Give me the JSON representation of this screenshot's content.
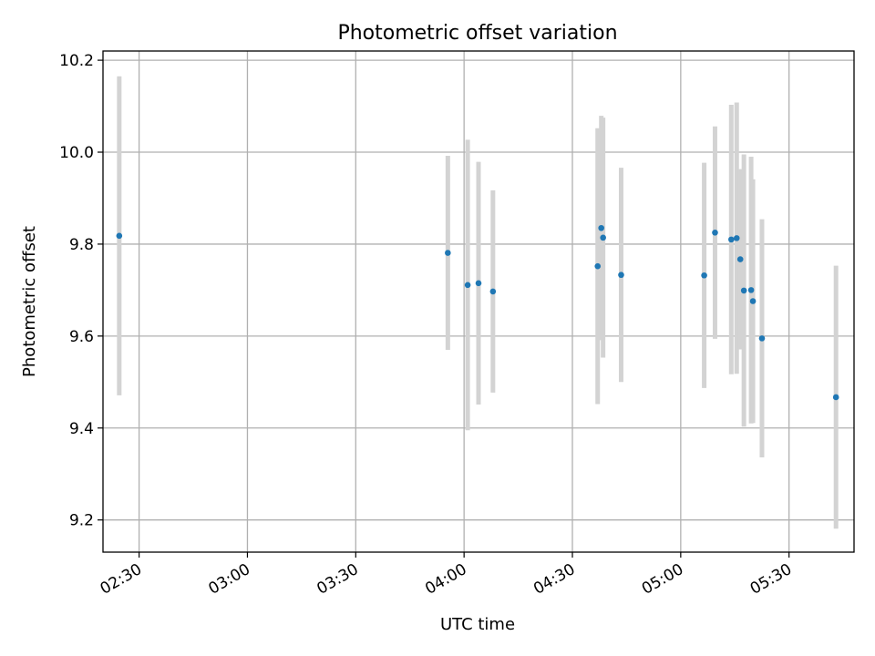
{
  "chart_data": {
    "type": "scatter",
    "title": "Photometric offset variation",
    "xlabel": "UTC time",
    "ylabel": "Photometric offset",
    "x_unit": "UTC time (HH:MM)",
    "xlim": [
      "02:20",
      "05:48"
    ],
    "ylim": [
      9.13,
      10.22
    ],
    "x_ticks": [
      "02:30",
      "03:00",
      "03:30",
      "04:00",
      "04:30",
      "05:00",
      "05:30"
    ],
    "y_ticks": [
      "9.2",
      "9.4",
      "9.6",
      "9.8",
      "10.0",
      "10.2"
    ],
    "grid": true,
    "legend": "none",
    "colors": {
      "point": "#1f77b4",
      "errorbar": "#d3d3d3",
      "grid": "#b0b0b0"
    },
    "points": [
      {
        "time": "02:24:30",
        "y": 9.818,
        "err": 0.347
      },
      {
        "time": "03:55:30",
        "y": 9.781,
        "err": 0.211
      },
      {
        "time": "04:01:00",
        "y": 9.711,
        "err": 0.316
      },
      {
        "time": "04:04:00",
        "y": 9.715,
        "err": 0.264
      },
      {
        "time": "04:08:00",
        "y": 9.697,
        "err": 0.22
      },
      {
        "time": "04:37:00",
        "y": 9.752,
        "err": 0.3
      },
      {
        "time": "04:38:00",
        "y": 9.835,
        "err": 0.244
      },
      {
        "time": "04:38:30",
        "y": 9.814,
        "err": 0.261
      },
      {
        "time": "04:43:30",
        "y": 9.733,
        "err": 0.233
      },
      {
        "time": "05:06:30",
        "y": 9.732,
        "err": 0.245
      },
      {
        "time": "05:09:30",
        "y": 9.825,
        "err": 0.231
      },
      {
        "time": "05:14:00",
        "y": 9.81,
        "err": 0.293
      },
      {
        "time": "05:15:30",
        "y": 9.813,
        "err": 0.295
      },
      {
        "time": "05:16:30",
        "y": 9.767,
        "err": 0.196
      },
      {
        "time": "05:17:30",
        "y": 9.699,
        "err": 0.296
      },
      {
        "time": "05:19:30",
        "y": 9.7,
        "err": 0.29
      },
      {
        "time": "05:20:00",
        "y": 9.676,
        "err": 0.265
      },
      {
        "time": "05:22:30",
        "y": 9.595,
        "err": 0.259
      },
      {
        "time": "05:43:00",
        "y": 9.467,
        "err": 0.286
      }
    ]
  }
}
